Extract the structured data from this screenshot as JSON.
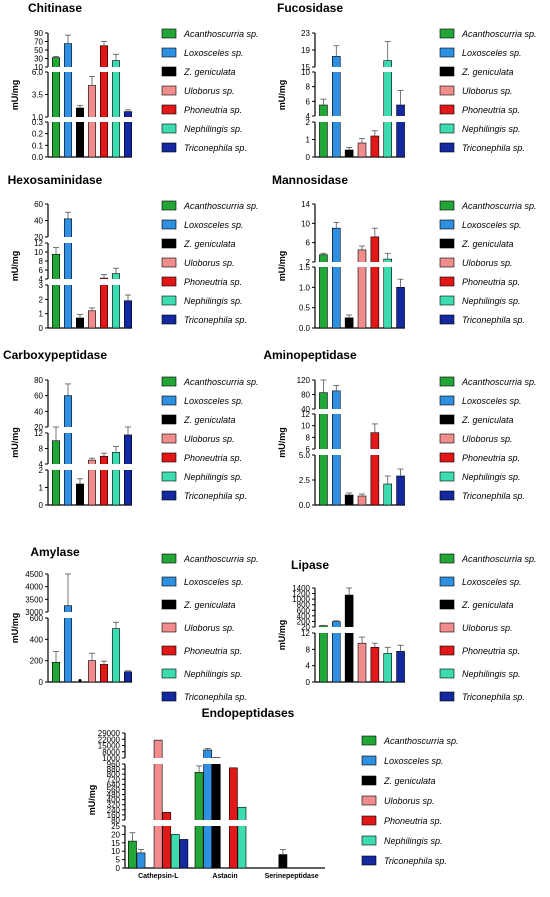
{
  "species_colors": [
    "#21a637",
    "#2f8fe0",
    "#000000",
    "#f08c8c",
    "#e01818",
    "#3ddcae",
    "#1428a0"
  ],
  "chart_data": [
    {
      "type": "bar",
      "title": "Chitinase",
      "ylabel": "mU/mg",
      "categories": [
        "Acanthoscurria sp.",
        "Loxosceles sp.",
        "Z. geniculata",
        "Uloborus sp.",
        "Phoneutria sp.",
        "Nephilingis sp.",
        "Triconephila sp."
      ],
      "values": [
        32,
        65,
        2.0,
        4.5,
        60,
        25,
        1.6
      ],
      "errors": [
        3,
        20,
        0.3,
        1.0,
        10,
        15,
        0.2
      ],
      "y_segments": [
        {
          "range": [
            0,
            0.3
          ],
          "ticks": [
            "0.0",
            "0.1",
            "0.2",
            "0.3"
          ]
        },
        {
          "range": [
            1,
            6
          ],
          "ticks": [
            "1.0",
            "3.5",
            "6.0"
          ]
        },
        {
          "range": [
            10,
            90
          ],
          "ticks": [
            "10",
            "30",
            "50",
            "70",
            "90"
          ]
        }
      ]
    },
    {
      "type": "bar",
      "title": "Fucosidase",
      "ylabel": "mU/mg",
      "categories": [
        "Acanthoscurria sp.",
        "Loxosceles sp.",
        "Z. geniculata",
        "Uloborus sp.",
        "Phoneutria sp.",
        "Nephilingis sp.",
        "Triconephila sp."
      ],
      "values": [
        5.5,
        17.5,
        0.4,
        0.8,
        1.2,
        16.5,
        5.5
      ],
      "errors": [
        0.8,
        2.5,
        0.15,
        0.25,
        0.3,
        4.5,
        2
      ],
      "y_segments": [
        {
          "range": [
            0,
            2
          ],
          "ticks": [
            "0",
            "1",
            "2"
          ]
        },
        {
          "range": [
            4,
            10
          ],
          "ticks": [
            "4",
            "6",
            "8",
            "10"
          ]
        },
        {
          "range": [
            15,
            23
          ],
          "ticks": [
            "15",
            "19",
            "23"
          ]
        }
      ]
    },
    {
      "type": "bar",
      "title": "Hexosaminidase",
      "ylabel": "mU/mg",
      "categories": [
        "Acanthoscurria sp.",
        "Loxosceles sp.",
        "Z. geniculata",
        "Uloborus sp.",
        "Phoneutria sp.",
        "Nephilingis sp.",
        "Triconephila sp."
      ],
      "values": [
        9.5,
        42,
        0.7,
        1.2,
        4.2,
        5.2,
        1.9
      ],
      "errors": [
        1.5,
        8,
        0.25,
        0.2,
        0.8,
        1.2,
        0.4
      ],
      "y_segments": [
        {
          "range": [
            0,
            3
          ],
          "ticks": [
            "0",
            "1",
            "2",
            "3"
          ]
        },
        {
          "range": [
            4,
            12
          ],
          "ticks": [
            "4",
            "6",
            "8",
            "10",
            "12"
          ]
        },
        {
          "range": [
            20,
            60
          ],
          "ticks": [
            "20",
            "40",
            "60"
          ]
        }
      ]
    },
    {
      "type": "bar",
      "title": "Mannosidase",
      "ylabel": "mU/mg",
      "categories": [
        "Acanthoscurria sp.",
        "Loxosceles sp.",
        "Z. geniculata",
        "Uloborus sp.",
        "Phoneutria sp.",
        "Nephilingis sp.",
        "Triconephila sp."
      ],
      "values": [
        3.5,
        9,
        0.25,
        4.5,
        7.2,
        2.6,
        1.0
      ],
      "errors": [
        0.3,
        1.2,
        0.07,
        0.8,
        1.8,
        1.2,
        0.2
      ],
      "y_segments": [
        {
          "range": [
            0,
            1.5
          ],
          "ticks": [
            "0.0",
            "0.5",
            "1.0",
            "1.5"
          ]
        },
        {
          "range": [
            2,
            14
          ],
          "ticks": [
            "2",
            "6",
            "10",
            "14"
          ]
        }
      ]
    },
    {
      "type": "bar",
      "title": "Carboxypeptidase",
      "ylabel": "mU/mg",
      "categories": [
        "Acanthoscurria sp.",
        "Loxosceles sp.",
        "Z. geniculata",
        "Uloborus sp.",
        "Phoneutria sp.",
        "Nephilingis sp.",
        "Triconephila sp."
      ],
      "values": [
        10,
        60,
        1.2,
        5,
        6,
        7,
        11.5
      ],
      "errors": [
        3,
        15,
        0.3,
        0.5,
        0.8,
        1.5,
        1.8
      ],
      "y_segments": [
        {
          "range": [
            0,
            2
          ],
          "ticks": [
            "0",
            "1",
            "2"
          ]
        },
        {
          "range": [
            4,
            12
          ],
          "ticks": [
            "4",
            "8",
            "12"
          ]
        },
        {
          "range": [
            20,
            80
          ],
          "ticks": [
            "20",
            "40",
            "60",
            "80"
          ]
        }
      ]
    },
    {
      "type": "bar",
      "title": "Aminopeptidase",
      "ylabel": "mU/mg",
      "categories": [
        "Acanthoscurria sp.",
        "Loxosceles sp.",
        "Z. geniculata",
        "Uloborus sp.",
        "Phoneutria sp.",
        "Nephilingis sp.",
        "Triconephila sp."
      ],
      "values": [
        85,
        90,
        1.0,
        0.9,
        8.8,
        2.1,
        2.9
      ],
      "errors": [
        35,
        15,
        0.2,
        0.2,
        1.5,
        0.8,
        0.7
      ],
      "y_segments": [
        {
          "range": [
            0,
            5
          ],
          "ticks": [
            "0.0",
            "2.5",
            "5.0"
          ]
        },
        {
          "range": [
            6,
            12
          ],
          "ticks": [
            "6",
            "8",
            "10",
            "12"
          ]
        },
        {
          "range": [
            40,
            120
          ],
          "ticks": [
            "40",
            "80",
            "120"
          ]
        }
      ]
    },
    {
      "type": "bar",
      "title": "Amylase",
      "ylabel": "mU/mg",
      "categories": [
        "Acanthoscurria sp.",
        "Loxosceles sp.",
        "Z. geniculata",
        "Uloborus sp.",
        "Phoneutria sp.",
        "Nephilingis sp.",
        "Triconephila sp."
      ],
      "values": [
        185,
        3250,
        3,
        200,
        165,
        500,
        95
      ],
      "errors": [
        100,
        1250,
        1,
        70,
        30,
        60,
        10
      ],
      "y_segments": [
        {
          "range": [
            0,
            600
          ],
          "ticks": [
            "0",
            "200",
            "400",
            "600"
          ]
        },
        {
          "range": [
            3000,
            4500
          ],
          "ticks": [
            "3000",
            "3500",
            "4000",
            "4500"
          ]
        }
      ]
    },
    {
      "type": "bar",
      "title": "Lipase",
      "ylabel": "mU/mg",
      "categories": [
        "Acanthoscurria sp.",
        "Loxosceles sp.",
        "Z. geniculata",
        "Uloborus sp.",
        "Phoneutria sp.",
        "Nephilingis sp.",
        "Triconephila sp."
      ],
      "values": [
        65,
        210,
        1150,
        9.5,
        8.5,
        7,
        7.5
      ],
      "errors": [
        10,
        30,
        250,
        1.5,
        1,
        1.5,
        1.5
      ],
      "y_segments": [
        {
          "range": [
            0,
            12
          ],
          "ticks": [
            "0",
            "4",
            "8",
            "12"
          ]
        },
        {
          "range": [
            20,
            1400
          ],
          "ticks": [
            "20",
            "200",
            "400",
            "600",
            "800",
            "1000",
            "1200",
            "1400"
          ]
        }
      ]
    },
    {
      "type": "bar",
      "title": "Endopeptidases",
      "ylabel": "mU/mg",
      "groups": [
        "Cathepsin-L",
        "Astacin",
        "Serinepeptidase"
      ],
      "series": [
        {
          "name": "Acanthoscurria sp.",
          "values": [
            16,
            830,
            0
          ]
        },
        {
          "name": "Loxosceles sp.",
          "values": [
            9,
            10000,
            0
          ]
        },
        {
          "name": "Z. geniculata",
          "values": [
            0,
            1300,
            8
          ]
        },
        {
          "name": "Uloborus sp.",
          "values": [
            21000,
            0,
            0
          ]
        },
        {
          "name": "Phoneutria sp.",
          "values": [
            200,
            900,
            0
          ]
        },
        {
          "name": "Nephilingis sp.",
          "values": [
            20,
            280,
            0
          ]
        },
        {
          "name": "Triconephila sp.",
          "values": [
            17,
            0,
            0
          ]
        }
      ],
      "errors": [
        [
          5,
          100,
          0
        ],
        [
          2,
          1500,
          0
        ],
        [
          0,
          200,
          3
        ],
        [
          0,
          0,
          0
        ],
        [
          0,
          0,
          0
        ],
        [
          0,
          0,
          0
        ],
        [
          0,
          0,
          0
        ]
      ],
      "y_segments": [
        {
          "range": [
            0,
            25
          ],
          "ticks": [
            "0",
            "5",
            "10",
            "15",
            "20",
            "25"
          ]
        },
        {
          "range": [
            80,
            960
          ],
          "ticks": [
            "80",
            "160",
            "240",
            "320",
            "400",
            "480",
            "560",
            "640",
            "720",
            "800",
            "880",
            "960"
          ]
        },
        {
          "range": [
            1000,
            29000
          ],
          "ticks": [
            "1000",
            "8000",
            "15000",
            "22000",
            "29000"
          ]
        }
      ]
    }
  ]
}
